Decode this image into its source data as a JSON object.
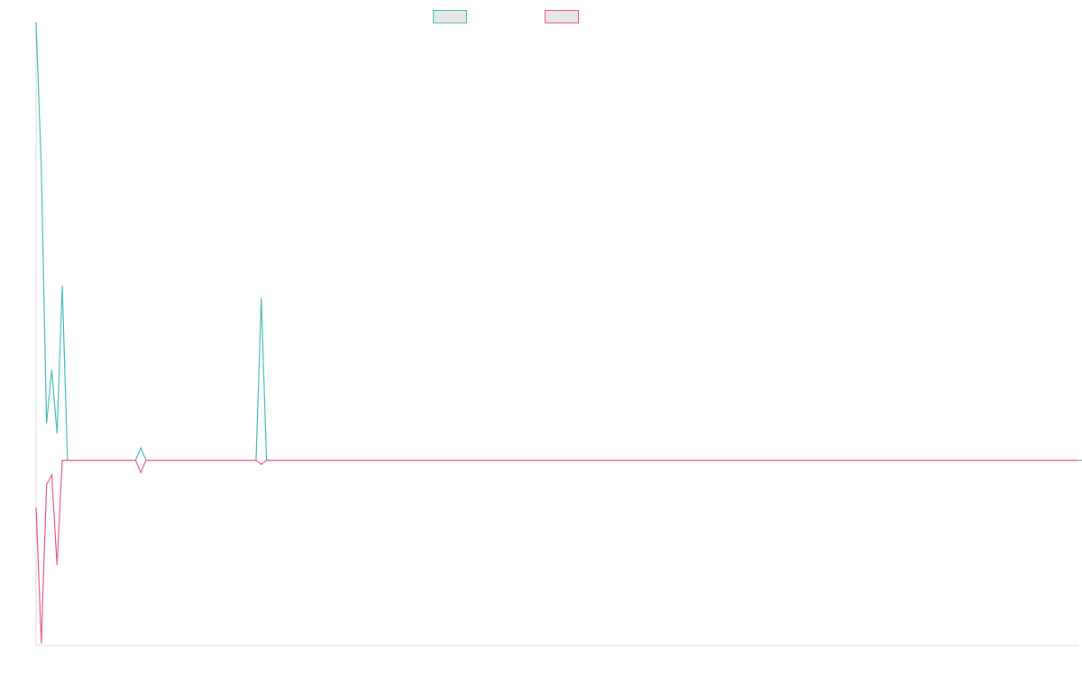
{
  "colors": {
    "teal": "#46bdb8",
    "pink": "#ea5a80",
    "legend_fill": "#e6e6e6",
    "axis": "#dddddd"
  },
  "chart_data": {
    "type": "line",
    "title": "",
    "xlabel": "",
    "ylabel": "",
    "grid": false,
    "legend_position": "top-center",
    "ylim": [
      -9,
      21.5
    ],
    "x_count": 200,
    "series": [
      {
        "color": "#46bdb8",
        "values": [
          21.3,
          14.2,
          1.8,
          4.4,
          1.3,
          8.5,
          0,
          0,
          0,
          0,
          0,
          0,
          0,
          0,
          0,
          0,
          0,
          0,
          0,
          0,
          0.6,
          0,
          0,
          0,
          0,
          0,
          0,
          0,
          0,
          0,
          0,
          0,
          0,
          0,
          0,
          0,
          0,
          0,
          0,
          0,
          0,
          0,
          0,
          7.9,
          0,
          0,
          0,
          0,
          0,
          0,
          0,
          0,
          0,
          0,
          0,
          0,
          0,
          0,
          0,
          0,
          0,
          0,
          0,
          0,
          0,
          0,
          0,
          0,
          0,
          0,
          0,
          0,
          0,
          0,
          0,
          0,
          0,
          0,
          0,
          0,
          0,
          0,
          0,
          0,
          0,
          0,
          0,
          0,
          0,
          0,
          0,
          0,
          0,
          0,
          0,
          0,
          0,
          0,
          0,
          0,
          0,
          0,
          0,
          0,
          0,
          0,
          0,
          0,
          0,
          0,
          0,
          0,
          0,
          0,
          0,
          0,
          0,
          0,
          0,
          0,
          0,
          0,
          0,
          0,
          0,
          0,
          0,
          0,
          0,
          0,
          0,
          0,
          0,
          0,
          0,
          0,
          0,
          0,
          0,
          0,
          0,
          0,
          0,
          0,
          0,
          0,
          0,
          0,
          0,
          0,
          0,
          0,
          0,
          0,
          0,
          0,
          0,
          0,
          0,
          0,
          0,
          0,
          0,
          0,
          0,
          0,
          0,
          0,
          0,
          0,
          0,
          0,
          0,
          0,
          0,
          0,
          0,
          0,
          0,
          0,
          0,
          0,
          0,
          0,
          0,
          0,
          0,
          0,
          0,
          0,
          0,
          0,
          0,
          0,
          0,
          0,
          0,
          0,
          0,
          0,
          0,
          0
        ]
      },
      {
        "color": "#ea5a80",
        "values": [
          -2.3,
          -8.9,
          -1.2,
          -0.7,
          -5.1,
          0,
          0,
          0,
          0,
          0,
          0,
          0,
          0,
          0,
          0,
          0,
          0,
          0,
          0,
          0,
          -0.6,
          0,
          0,
          0,
          0,
          0,
          0,
          0,
          0,
          0,
          0,
          0,
          0,
          0,
          0,
          0,
          0,
          0,
          0,
          0,
          0,
          0,
          0,
          -0.2,
          0,
          0,
          0,
          0,
          0,
          0,
          0,
          0,
          0,
          0,
          0,
          0,
          0,
          0,
          0,
          0,
          0,
          0,
          0,
          0,
          0,
          0,
          0,
          0,
          0,
          0,
          0,
          0,
          0,
          0,
          0,
          0,
          0,
          0,
          0,
          0,
          0,
          0,
          0,
          0,
          0,
          0,
          0,
          0,
          0,
          0,
          0,
          0,
          0,
          0,
          0,
          0,
          0,
          0,
          0,
          0,
          0,
          0,
          0,
          0,
          0,
          0,
          0,
          0,
          0,
          0,
          0,
          0,
          0,
          0,
          0,
          0,
          0,
          0,
          0,
          0,
          0,
          0,
          0,
          0,
          0,
          0,
          0,
          0,
          0,
          0,
          0,
          0,
          0,
          0,
          0,
          0,
          0,
          0,
          0,
          0,
          0,
          0,
          0,
          0,
          0,
          0,
          0,
          0,
          0,
          0,
          0,
          0,
          0,
          0,
          0,
          0,
          0,
          0,
          0,
          0,
          0,
          0,
          0,
          0,
          0,
          0,
          0,
          0,
          0,
          0,
          0,
          0,
          0,
          0,
          0,
          0,
          0,
          0,
          0,
          0,
          0,
          0,
          0,
          0,
          0,
          0,
          0,
          0,
          0,
          0,
          0,
          0,
          0,
          0,
          0,
          0,
          0,
          0,
          0,
          0
        ]
      }
    ]
  }
}
